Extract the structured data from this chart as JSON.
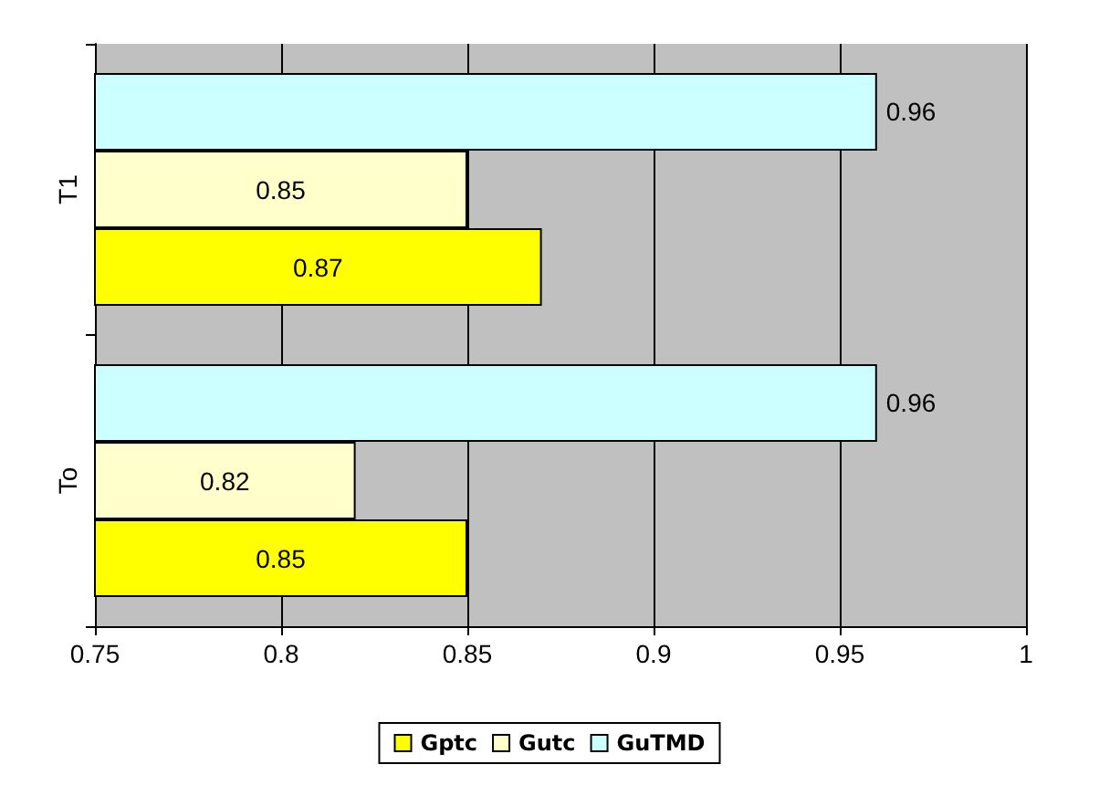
{
  "chart_data": {
    "type": "bar",
    "orientation": "horizontal",
    "categories": [
      "T1",
      "To"
    ],
    "series": [
      {
        "name": "Gptc",
        "color": "#ffff00",
        "values": [
          0.87,
          0.85
        ]
      },
      {
        "name": "Gutc",
        "color": "#ffffcc",
        "values": [
          0.85,
          0.82
        ]
      },
      {
        "name": "GuTMD",
        "color": "#ccffff",
        "values": [
          0.96,
          0.96
        ]
      }
    ],
    "xlim": [
      0.75,
      1
    ],
    "xticks": [
      0.75,
      0.8,
      0.85,
      0.9,
      0.95,
      1
    ],
    "grid": "x",
    "legend": "bottom",
    "data_labels": true
  }
}
